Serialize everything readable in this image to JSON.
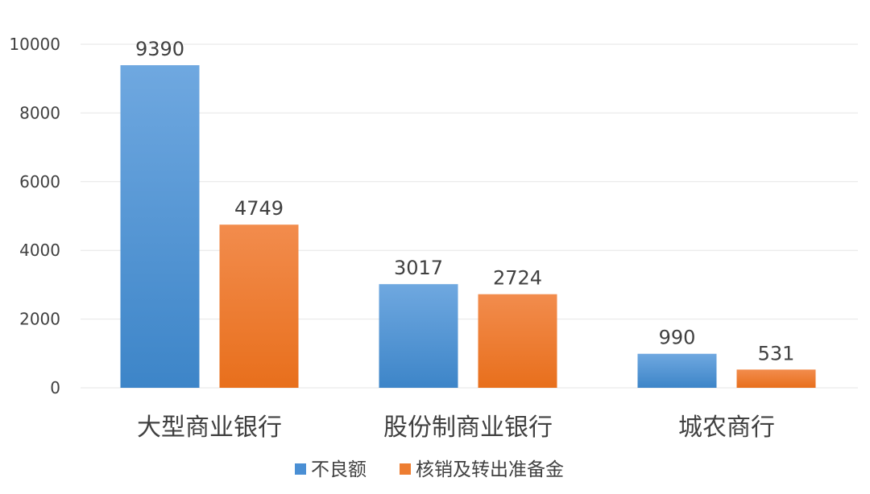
{
  "chart_data": {
    "type": "bar",
    "categories": [
      "大型商业银行",
      "股份制商业银行",
      "城农商行"
    ],
    "series": [
      {
        "name": "不良额",
        "values": [
          9390,
          3017,
          990
        ],
        "color": "#4a8fd4"
      },
      {
        "name": "核销及转出准备金",
        "values": [
          4749,
          2724,
          531
        ],
        "color": "#ed7d31"
      }
    ],
    "ylim": [
      0,
      10000
    ],
    "yticks": [
      0,
      2000,
      4000,
      6000,
      8000,
      10000
    ],
    "grid": true,
    "legend_position": "bottom",
    "title": "",
    "xlabel": "",
    "ylabel": ""
  }
}
